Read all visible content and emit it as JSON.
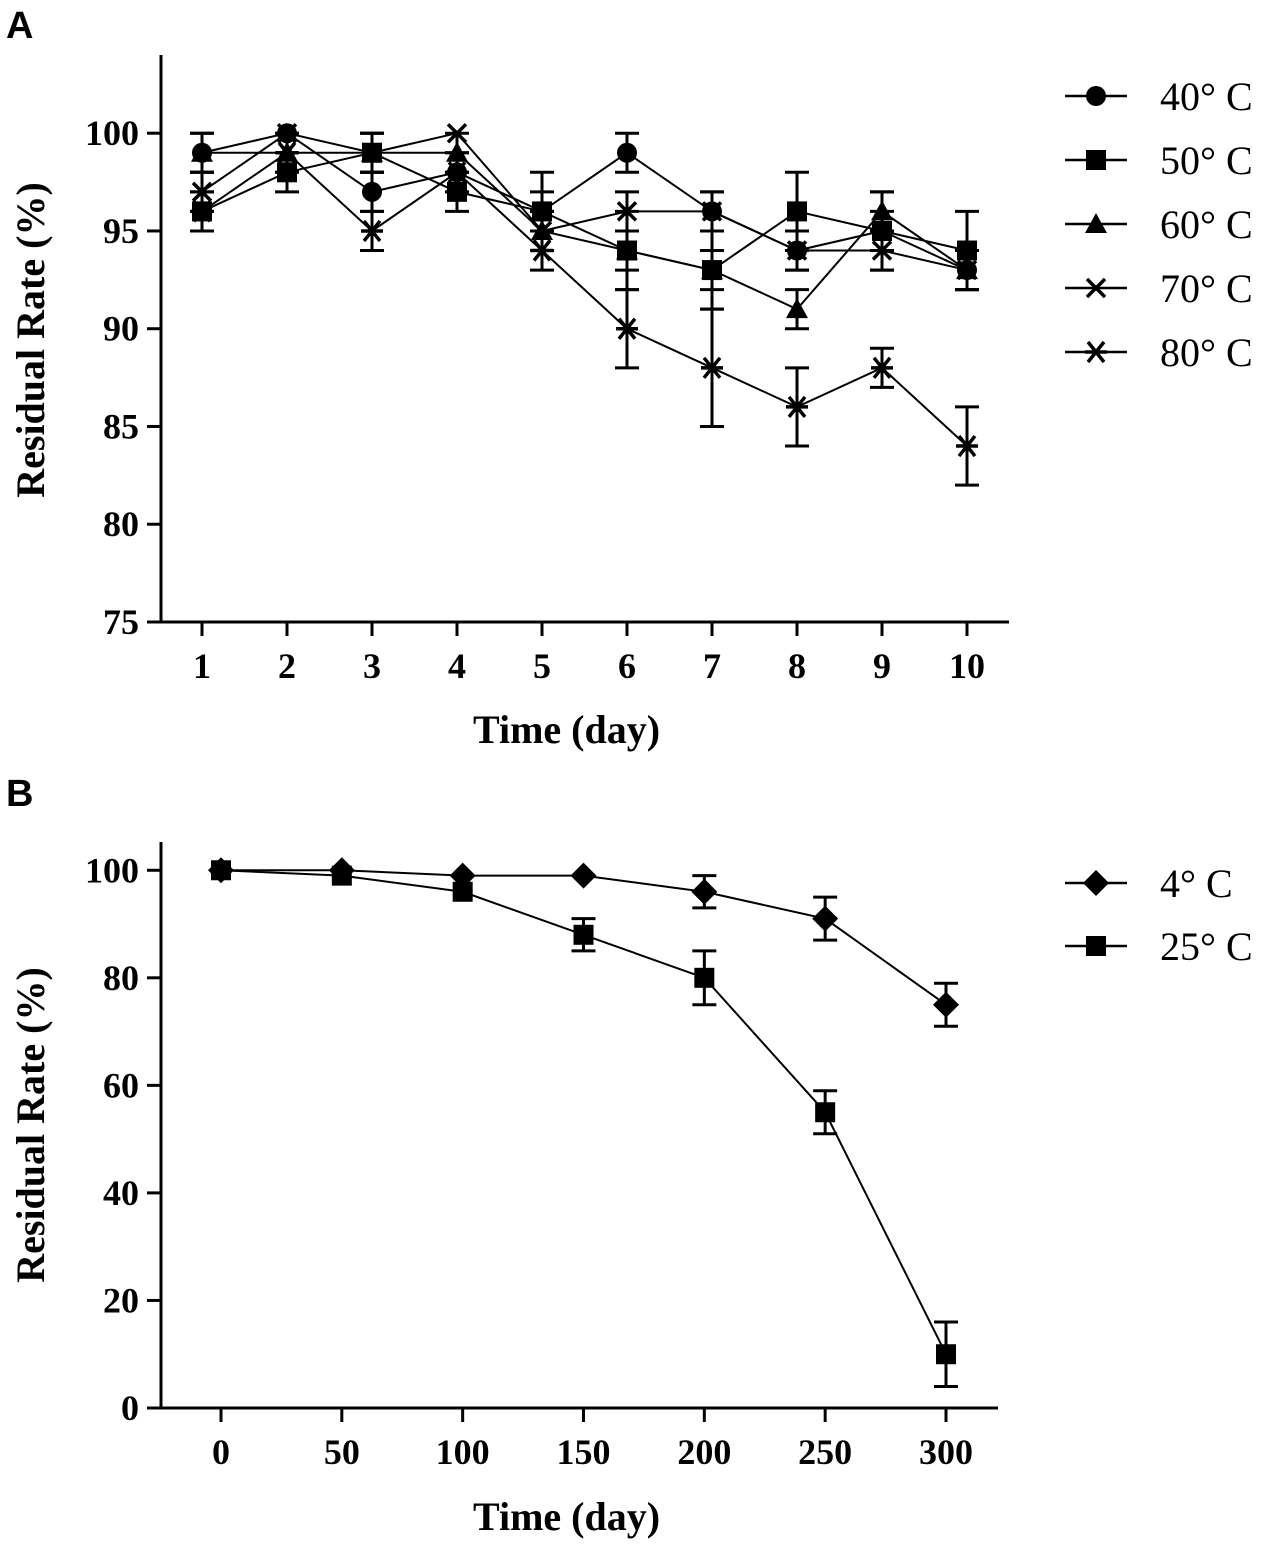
{
  "chart_data": [
    {
      "panel": "A",
      "type": "line",
      "xlabel": "Time (day)",
      "ylabel": "Residual Rate (%)",
      "x": [
        1,
        2,
        3,
        4,
        5,
        6,
        7,
        8,
        9,
        10
      ],
      "xticks": [
        1,
        2,
        3,
        4,
        5,
        6,
        7,
        8,
        9,
        10
      ],
      "ylim": [
        75,
        104
      ],
      "yticks": [
        75,
        80,
        85,
        90,
        95,
        100
      ],
      "legend_position": "right",
      "series": [
        {
          "name": "40° C",
          "marker": "circle",
          "values": [
            99,
            100,
            97,
            98,
            96,
            99,
            96,
            94,
            95,
            93
          ],
          "errors": [
            1,
            0,
            1,
            1,
            1,
            1,
            1,
            1,
            1,
            1
          ]
        },
        {
          "name": "50° C",
          "marker": "square",
          "values": [
            96,
            98,
            99,
            97,
            96,
            94,
            93,
            96,
            95,
            94
          ],
          "errors": [
            1,
            1,
            1,
            1,
            2,
            2,
            2,
            2,
            2,
            2
          ]
        },
        {
          "name": "60° C",
          "marker": "triangle",
          "values": [
            99,
            99,
            99,
            99,
            95,
            94,
            93,
            91,
            96,
            93
          ],
          "errors": [
            1,
            1,
            1,
            1,
            1,
            1,
            1,
            1,
            1,
            1
          ]
        },
        {
          "name": "70° C",
          "marker": "x",
          "values": [
            97,
            100,
            99,
            100,
            95,
            96,
            96,
            94,
            94,
            93
          ],
          "errors": [
            1,
            0,
            1,
            0,
            1,
            1,
            1,
            1,
            1,
            1
          ]
        },
        {
          "name": "80° C",
          "marker": "asterisk",
          "values": [
            96,
            99,
            95,
            98,
            94,
            90,
            88,
            86,
            88,
            84
          ],
          "errors": [
            1,
            1,
            1,
            1,
            1,
            2,
            3,
            2,
            1,
            2
          ]
        }
      ]
    },
    {
      "panel": "B",
      "type": "line",
      "xlabel": "Time (day)",
      "ylabel": "Residual Rate (%)",
      "x": [
        0,
        50,
        100,
        150,
        200,
        250,
        300
      ],
      "xticks": [
        0,
        50,
        100,
        150,
        200,
        250,
        300
      ],
      "xlim": [
        -25,
        325
      ],
      "ylim": [
        0,
        106
      ],
      "yticks": [
        0,
        20,
        40,
        60,
        80,
        100
      ],
      "legend_position": "right",
      "series": [
        {
          "name": "4° C",
          "marker": "diamond",
          "values": [
            100,
            100,
            99,
            99,
            96,
            91,
            75
          ],
          "errors": [
            0,
            0,
            0,
            0,
            3,
            4,
            4
          ]
        },
        {
          "name": "25° C",
          "marker": "square",
          "values": [
            100,
            99,
            96,
            88,
            80,
            55,
            10
          ],
          "errors": [
            0,
            0,
            0,
            3,
            5,
            4,
            6
          ]
        }
      ]
    }
  ]
}
